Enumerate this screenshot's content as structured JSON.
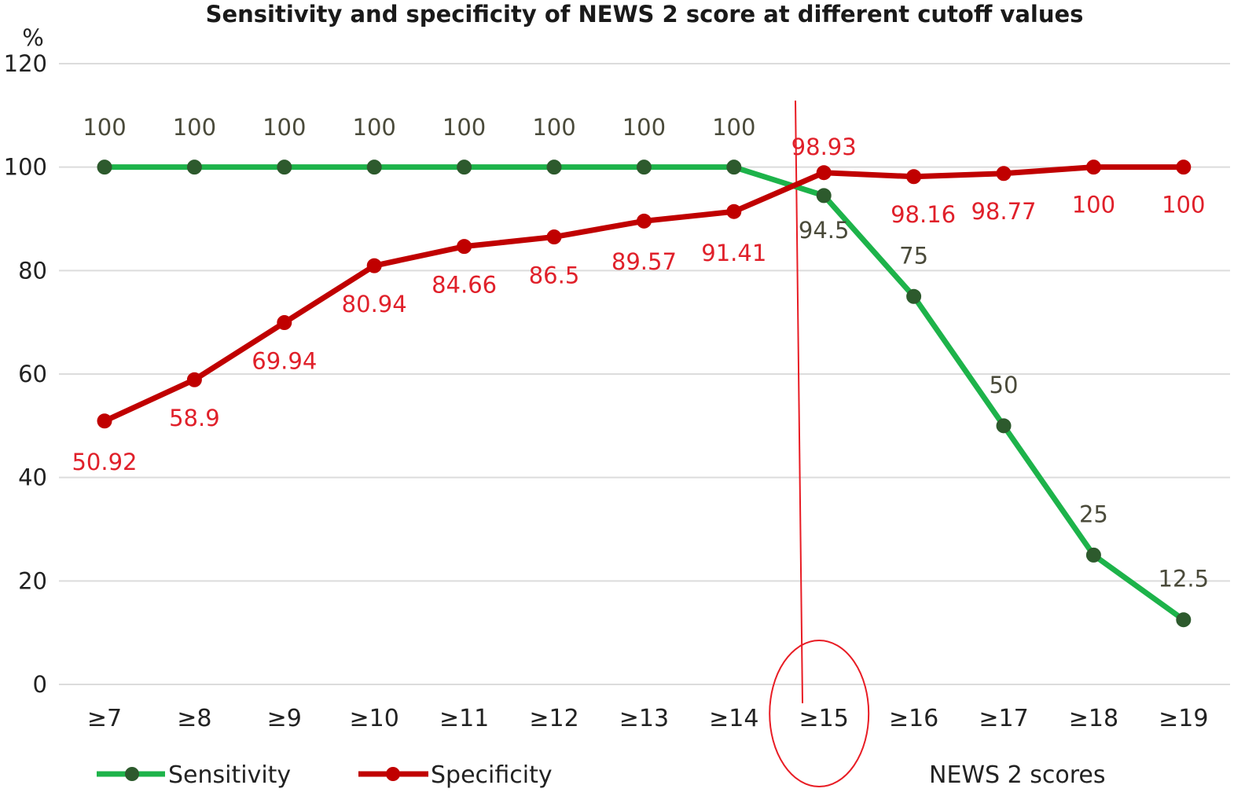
{
  "colors": {
    "sensitivity": "#1db34a",
    "specificity": "#c00000",
    "marker": "#2d5a2d",
    "cutoff": "#e81c24",
    "grid": "#dcdcdc"
  },
  "chart_data": {
    "type": "line",
    "title": "Sensitivity and specificity of NEWS 2 score at different cutoff values",
    "ylabel": "%",
    "xlabel": "NEWS 2 scores",
    "ylim": [
      0,
      120
    ],
    "yticks": [
      "0",
      "20",
      "40",
      "60",
      "80",
      "100",
      "120"
    ],
    "categories": [
      "≥7",
      "≥8",
      "≥9",
      "≥10",
      "≥11",
      "≥12",
      "≥13",
      "≥14",
      "≥15",
      "≥16",
      "≥17",
      "≥18",
      "≥19"
    ],
    "series": [
      {
        "name": "Sensitivity",
        "values": [
          100,
          100,
          100,
          100,
          100,
          100,
          100,
          100,
          94.5,
          75,
          50,
          25,
          12.5
        ],
        "labels": [
          "100",
          "100",
          "100",
          "100",
          "100",
          "100",
          "100",
          "100",
          "94.5",
          "75",
          "50",
          "25",
          "12.5"
        ]
      },
      {
        "name": "Specificity",
        "values": [
          50.92,
          58.9,
          69.94,
          80.94,
          84.66,
          86.5,
          89.57,
          91.41,
          98.93,
          98.16,
          98.77,
          100,
          100
        ],
        "labels": [
          "50.92",
          "58.9",
          "69.94",
          "80.94",
          "84.66",
          "86.5",
          "89.57",
          "91.41",
          "98.93",
          "98.16",
          "98.77",
          "100",
          "100"
        ]
      }
    ],
    "highlight_category": "≥15",
    "grid": true,
    "legend_position": "bottom-left"
  }
}
